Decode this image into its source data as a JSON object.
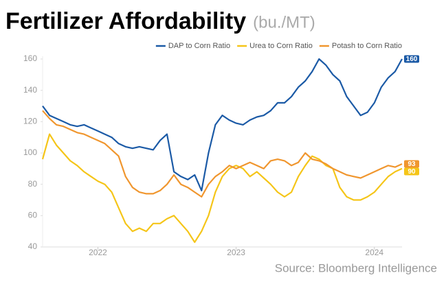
{
  "chart_data": {
    "type": "line",
    "title": "Fertilizer Affordability",
    "subtitle": "(bu./MT)",
    "source": "Source: Bloomberg Intelligence",
    "x": [
      2021.6,
      2021.65,
      2021.7,
      2021.75,
      2021.8,
      2021.85,
      2021.9,
      2021.95,
      2022.0,
      2022.05,
      2022.1,
      2022.15,
      2022.2,
      2022.25,
      2022.3,
      2022.35,
      2022.4,
      2022.45,
      2022.5,
      2022.55,
      2022.6,
      2022.65,
      2022.7,
      2022.75,
      2022.8,
      2022.85,
      2022.9,
      2022.95,
      2023.0,
      2023.05,
      2023.1,
      2023.15,
      2023.2,
      2023.25,
      2023.3,
      2023.35,
      2023.4,
      2023.45,
      2023.5,
      2023.55,
      2023.6,
      2023.65,
      2023.7,
      2023.75,
      2023.8,
      2023.85,
      2023.9,
      2023.95,
      2024.0,
      2024.05,
      2024.1,
      2024.15,
      2024.2
    ],
    "series": [
      {
        "name": "DAP to Corn Ratio",
        "color": "#1b5aa6",
        "values": [
          130,
          124,
          122,
          120,
          118,
          117,
          118,
          116,
          114,
          112,
          110,
          106,
          104,
          103,
          104,
          103,
          102,
          108,
          112,
          88,
          85,
          83,
          86,
          76,
          100,
          118,
          124,
          121,
          119,
          118,
          121,
          123,
          124,
          127,
          132,
          132,
          136,
          142,
          146,
          152,
          160,
          156,
          150,
          146,
          136,
          130,
          124,
          126,
          132,
          142,
          148,
          152,
          160
        ]
      },
      {
        "name": "Urea to Corn Ratio",
        "color": "#f5c518",
        "values": [
          96,
          112,
          105,
          100,
          95,
          92,
          88,
          85,
          82,
          80,
          75,
          65,
          55,
          50,
          52,
          50,
          55,
          55,
          58,
          60,
          55,
          50,
          43,
          50,
          60,
          75,
          85,
          90,
          92,
          90,
          85,
          88,
          84,
          80,
          75,
          72,
          75,
          85,
          92,
          98,
          96,
          92,
          90,
          78,
          72,
          70,
          70,
          72,
          75,
          80,
          85,
          88,
          90
        ]
      },
      {
        "name": "Potash to Corn Ratio",
        "color": "#f0962e",
        "values": [
          127,
          122,
          118,
          117,
          115,
          113,
          112,
          110,
          108,
          106,
          102,
          98,
          85,
          78,
          75,
          74,
          74,
          76,
          80,
          86,
          80,
          78,
          75,
          72,
          80,
          85,
          88,
          92,
          90,
          92,
          94,
          92,
          90,
          95,
          96,
          95,
          92,
          94,
          100,
          96,
          95,
          93,
          90,
          88,
          86,
          85,
          84,
          86,
          88,
          90,
          92,
          91,
          93
        ]
      }
    ],
    "xlim": [
      2021.6,
      2024.2
    ],
    "xticks": [
      2022,
      2023,
      2024
    ],
    "ylim": [
      40,
      160
    ],
    "yticks": [
      40,
      60,
      80,
      100,
      120,
      140,
      160
    ],
    "grid": false,
    "legend": "top-right"
  }
}
